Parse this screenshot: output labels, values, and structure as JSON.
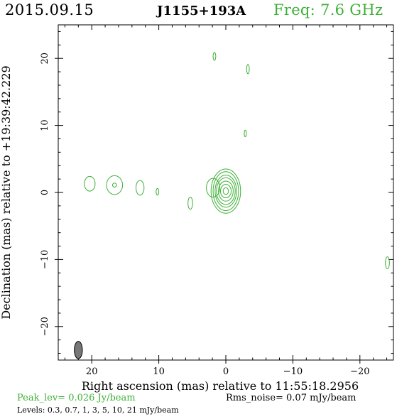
{
  "header": {
    "date": "2015.09.15",
    "source": "J1155+193A",
    "freq": "Freq: 7.6 GHz"
  },
  "footer": {
    "peak": "Peak_lev=  0.026 Jy/beam",
    "rms": "Rms_noise= 0.07 mJy/beam",
    "levels": "Levels: 0.3, 0.7,    1,    3,    5,   10,   21 mJy/beam"
  },
  "colors": {
    "contour": "#3cb034",
    "beam": "#777777",
    "text_accent": "#3cb034"
  },
  "chart_data": {
    "type": "contour",
    "xlabel": "Right ascension (mas) relative to 11:55:18.2956",
    "ylabel": "Declination (mas) relative to +19:39:42.229",
    "xlim": [
      25,
      -25
    ],
    "ylim": [
      -25,
      25
    ],
    "xticks": [
      20,
      10,
      0,
      -10,
      -20
    ],
    "yticks": [
      20,
      10,
      0,
      -10,
      -20
    ],
    "xtick_labels": [
      "20",
      "10",
      "0",
      "−10",
      "−20"
    ],
    "ytick_labels": [
      "20",
      "10",
      "0",
      "−10",
      "−20"
    ],
    "levels_mJy_per_beam": [
      0.3,
      0.7,
      1,
      3,
      5,
      10,
      21
    ],
    "peak_Jy_per_beam": 0.026,
    "rms_mJy_per_beam": 0.07,
    "beam": {
      "x": 22,
      "y": -23.5,
      "major_mas": 2.6,
      "minor_mas": 1.2,
      "pa_deg": 0
    },
    "components": [
      {
        "name": "core",
        "x": 0,
        "y": 0.2,
        "rx": [
          2.2,
          1.9,
          1.6,
          1.4,
          1.1,
          0.8,
          0.4
        ],
        "ry": [
          3.3,
          2.9,
          2.4,
          2.0,
          1.5,
          1.0,
          0.5
        ]
      },
      {
        "name": "core-extension",
        "x": 1.9,
        "y": 0.7,
        "rx": [
          1.0
        ],
        "ry": [
          1.4
        ]
      },
      {
        "name": "blob-a",
        "x": 20.3,
        "y": 1.3,
        "rx": [
          0.8
        ],
        "ry": [
          1.1
        ]
      },
      {
        "name": "blob-b",
        "x": 16.6,
        "y": 1.1,
        "rx": [
          1.2,
          0.3
        ],
        "ry": [
          1.4,
          0.3
        ]
      },
      {
        "name": "blob-c",
        "x": 12.8,
        "y": 0.7,
        "rx": [
          0.6
        ],
        "ry": [
          1.1
        ]
      },
      {
        "name": "blob-d",
        "x": 10.2,
        "y": 0.1,
        "rx": [
          0.2
        ],
        "ry": [
          0.5
        ]
      },
      {
        "name": "blob-e",
        "x": 5.3,
        "y": -1.6,
        "rx": [
          0.35
        ],
        "ry": [
          0.9
        ]
      },
      {
        "name": "blob-f",
        "x": 1.7,
        "y": 20.3,
        "rx": [
          0.2
        ],
        "ry": [
          0.6
        ]
      },
      {
        "name": "blob-g",
        "x": -3.3,
        "y": 18.4,
        "rx": [
          0.2
        ],
        "ry": [
          0.7
        ]
      },
      {
        "name": "blob-h",
        "x": -2.9,
        "y": 8.8,
        "rx": [
          0.15
        ],
        "ry": [
          0.5
        ]
      },
      {
        "name": "blob-i",
        "x": -24.1,
        "y": -10.5,
        "rx": [
          0.3
        ],
        "ry": [
          0.9
        ]
      }
    ]
  }
}
